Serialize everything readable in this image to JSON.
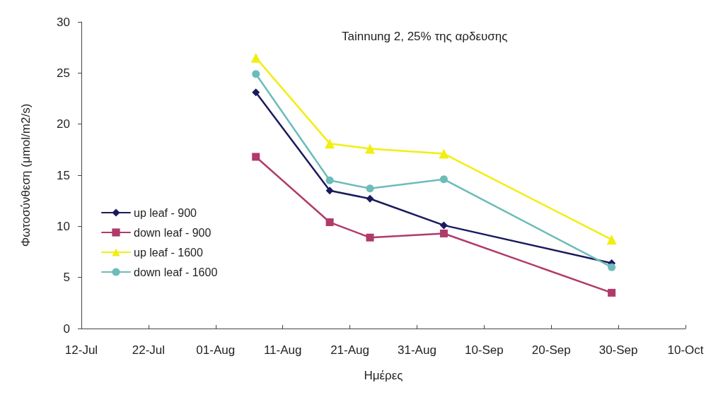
{
  "chart_data": {
    "type": "line",
    "title": "Tainnung 2, 25% της αρδευσης",
    "xlabel": "Ημέρες",
    "ylabel": "Φωτοσύνθεση (μmol/m2/s)",
    "x": [
      "--08-07",
      "--08-18",
      "--08-24",
      "--09-04",
      "--09-29"
    ],
    "series": [
      {
        "name": "up leaf - 900",
        "color": "#1a1a5e",
        "marker": "diamond",
        "values": [
          23.1,
          13.5,
          12.7,
          10.1,
          6.4
        ]
      },
      {
        "name": "down leaf - 900",
        "color": "#b03a6a",
        "marker": "square",
        "values": [
          16.8,
          10.4,
          8.9,
          9.3,
          3.5
        ]
      },
      {
        "name": "up leaf - 1600",
        "color": "#f2ee10",
        "marker": "triangle",
        "values": [
          26.5,
          18.1,
          17.6,
          17.1,
          8.7
        ]
      },
      {
        "name": "down leaf - 1600",
        "color": "#6cbcb8",
        "marker": "circle",
        "values": [
          24.9,
          14.5,
          13.7,
          14.6,
          6.0
        ]
      }
    ],
    "xlim": [
      "--07-12",
      "--10-10"
    ],
    "xticks": [
      {
        "value": "--07-12",
        "label": "12-Jul"
      },
      {
        "value": "--07-22",
        "label": "22-Jul"
      },
      {
        "value": "--08-01",
        "label": "01-Aug"
      },
      {
        "value": "--08-11",
        "label": "11-Aug"
      },
      {
        "value": "--08-21",
        "label": "21-Aug"
      },
      {
        "value": "--08-31",
        "label": "31-Aug"
      },
      {
        "value": "--09-10",
        "label": "10-Sep"
      },
      {
        "value": "--09-20",
        "label": "20-Sep"
      },
      {
        "value": "--09-30",
        "label": "30-Sep"
      },
      {
        "value": "--10-10",
        "label": "10-Oct"
      }
    ],
    "ylim": [
      0,
      30
    ],
    "yticks": [
      0,
      5,
      10,
      15,
      20,
      25,
      30
    ],
    "grid": false,
    "legend": "left",
    "line_style": "solid"
  }
}
